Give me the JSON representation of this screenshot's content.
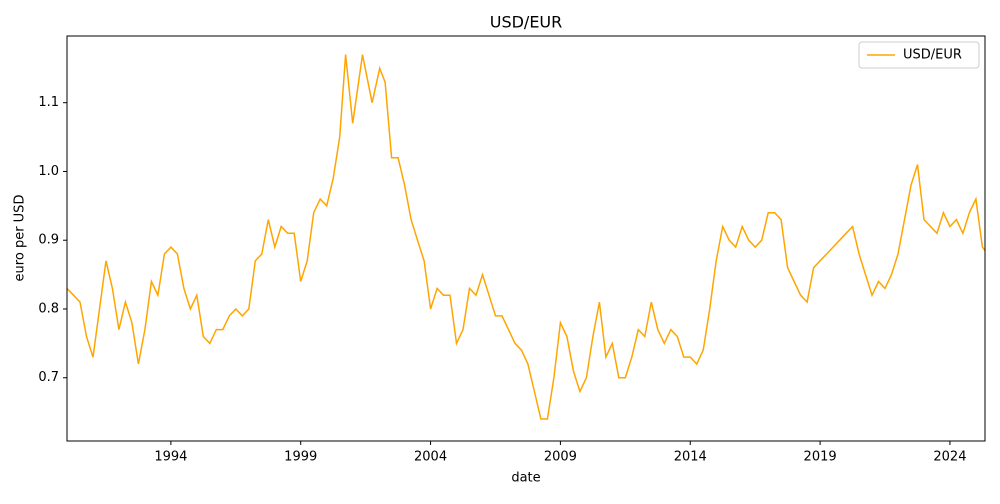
{
  "chart_data": {
    "type": "line",
    "title": "USD/EUR",
    "x_label": "date",
    "y_label": "euro per USD",
    "x": [
      1990.0,
      1990.25,
      1990.5,
      1990.75,
      1991.0,
      1991.25,
      1991.5,
      1991.75,
      1992.0,
      1992.25,
      1992.5,
      1992.75,
      1993.0,
      1993.25,
      1993.5,
      1993.75,
      1994.0,
      1994.25,
      1994.5,
      1994.75,
      1995.0,
      1995.25,
      1995.5,
      1995.75,
      1996.0,
      1996.25,
      1996.5,
      1996.75,
      1997.0,
      1997.25,
      1997.5,
      1997.75,
      1998.0,
      1998.25,
      1998.5,
      1998.75,
      1999.0,
      1999.25,
      1999.5,
      1999.75,
      2000.0,
      2000.25,
      2000.5,
      2000.73,
      2001.0,
      2001.38,
      2001.75,
      2002.04,
      2002.25,
      2002.5,
      2002.75,
      2003.0,
      2003.25,
      2003.54,
      2003.75,
      2004.0,
      2004.25,
      2004.5,
      2004.75,
      2005.0,
      2005.25,
      2005.5,
      2005.75,
      2006.0,
      2006.25,
      2006.5,
      2006.75,
      2007.0,
      2007.25,
      2007.5,
      2007.75,
      2008.0,
      2008.25,
      2008.5,
      2008.75,
      2009.0,
      2009.25,
      2009.5,
      2009.75,
      2010.0,
      2010.25,
      2010.5,
      2010.75,
      2011.0,
      2011.25,
      2011.5,
      2011.75,
      2012.0,
      2012.25,
      2012.5,
      2012.75,
      2013.0,
      2013.25,
      2013.5,
      2013.75,
      2014.0,
      2014.25,
      2014.5,
      2014.75,
      2015.0,
      2015.25,
      2015.5,
      2015.75,
      2016.0,
      2016.25,
      2016.5,
      2016.75,
      2017.0,
      2017.25,
      2017.5,
      2017.75,
      2018.0,
      2018.25,
      2018.5,
      2018.75,
      2019.0,
      2019.25,
      2019.5,
      2019.75,
      2020.0,
      2020.25,
      2020.5,
      2020.75,
      2021.0,
      2021.25,
      2021.5,
      2021.75,
      2022.0,
      2022.25,
      2022.5,
      2022.75,
      2023.0,
      2023.25,
      2023.5,
      2023.75,
      2024.0,
      2024.25,
      2024.5,
      2024.75,
      2025.0,
      2025.25,
      2025.35
    ],
    "series": [
      {
        "name": "USD/EUR",
        "color": "#ffa500",
        "values": [
          0.83,
          0.82,
          0.81,
          0.76,
          0.73,
          0.8,
          0.87,
          0.83,
          0.77,
          0.81,
          0.78,
          0.72,
          0.77,
          0.84,
          0.82,
          0.88,
          0.89,
          0.88,
          0.83,
          0.8,
          0.82,
          0.76,
          0.75,
          0.77,
          0.77,
          0.79,
          0.8,
          0.79,
          0.8,
          0.87,
          0.88,
          0.93,
          0.89,
          0.92,
          0.91,
          0.91,
          0.84,
          0.87,
          0.94,
          0.96,
          0.95,
          0.99,
          1.05,
          1.17,
          1.07,
          1.17,
          1.1,
          1.15,
          1.13,
          1.02,
          1.02,
          0.98,
          0.93,
          0.895,
          0.87,
          0.8,
          0.83,
          0.82,
          0.82,
          0.75,
          0.77,
          0.83,
          0.82,
          0.85,
          0.82,
          0.79,
          0.79,
          0.77,
          0.75,
          0.74,
          0.72,
          0.68,
          0.64,
          0.64,
          0.7,
          0.78,
          0.76,
          0.71,
          0.68,
          0.7,
          0.76,
          0.81,
          0.73,
          0.75,
          0.7,
          0.7,
          0.73,
          0.77,
          0.76,
          0.81,
          0.77,
          0.75,
          0.77,
          0.76,
          0.73,
          0.73,
          0.72,
          0.74,
          0.8,
          0.87,
          0.92,
          0.9,
          0.89,
          0.92,
          0.9,
          0.89,
          0.9,
          0.94,
          0.94,
          0.93,
          0.86,
          0.84,
          0.82,
          0.81,
          0.86,
          0.87,
          0.88,
          0.89,
          0.9,
          0.91,
          0.92,
          0.88,
          0.85,
          0.82,
          0.84,
          0.83,
          0.85,
          0.88,
          0.93,
          0.98,
          1.01,
          0.93,
          0.92,
          0.91,
          0.94,
          0.92,
          0.93,
          0.91,
          0.94,
          0.96,
          0.89,
          0.885
        ]
      }
    ],
    "xlim": [
      1990.0,
      2025.35
    ],
    "xticks": [
      1994,
      1999,
      2004,
      2009,
      2014,
      2019,
      2024
    ],
    "ylim": [
      0.608,
      1.197
    ],
    "yticks": [
      0.7,
      0.8,
      0.9,
      {
        "value": 1,
        "label": "1.0"
      },
      1.1
    ],
    "legend": "upper right",
    "grid": false
  }
}
